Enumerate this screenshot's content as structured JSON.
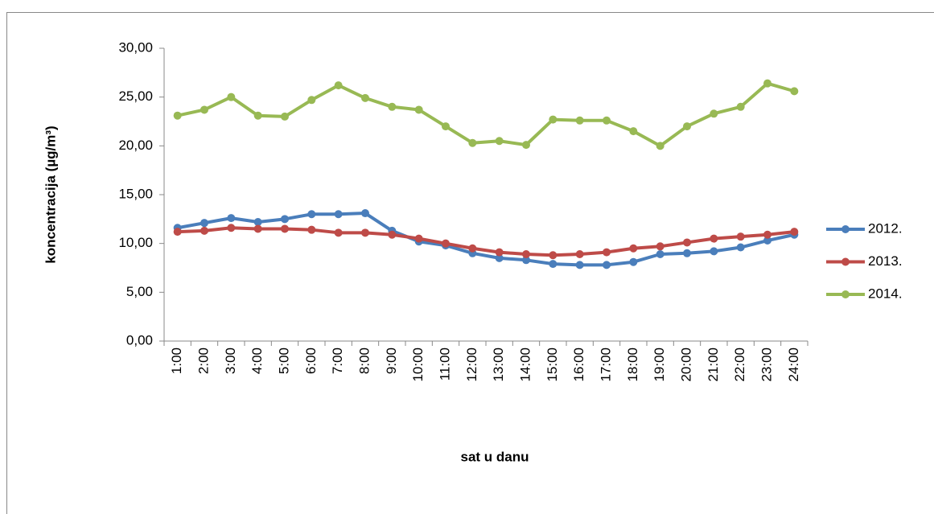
{
  "chart_data": {
    "type": "line",
    "x_label": "sat u danu",
    "y_label": "koncentracija (µg/m³)",
    "categories": [
      "1:00",
      "2:00",
      "3:00",
      "4:00",
      "5:00",
      "6:00",
      "7:00",
      "8:00",
      "9:00",
      "10:00",
      "11:00",
      "12:00",
      "13:00",
      "14:00",
      "15:00",
      "16:00",
      "17:00",
      "18:00",
      "19:00",
      "20:00",
      "21:00",
      "22:00",
      "23:00",
      "24:00"
    ],
    "series": [
      {
        "name": "2012.",
        "color": "#4a7ebb",
        "values": [
          11.6,
          12.1,
          12.6,
          12.2,
          12.5,
          13.0,
          13.0,
          13.1,
          11.3,
          10.2,
          9.8,
          9.0,
          8.5,
          8.3,
          7.9,
          7.8,
          7.8,
          8.1,
          8.9,
          9.0,
          9.2,
          9.6,
          10.3,
          10.9
        ]
      },
      {
        "name": "2013.",
        "color": "#be4b48",
        "values": [
          11.2,
          11.3,
          11.6,
          11.5,
          11.5,
          11.4,
          11.1,
          11.1,
          10.9,
          10.5,
          10.0,
          9.5,
          9.1,
          8.9,
          8.8,
          8.9,
          9.1,
          9.5,
          9.7,
          10.1,
          10.5,
          10.7,
          10.9,
          11.2
        ]
      },
      {
        "name": "2014.",
        "color": "#98b954",
        "values": [
          23.1,
          23.7,
          25.0,
          23.1,
          23.0,
          24.7,
          26.2,
          24.9,
          24.0,
          23.7,
          22.0,
          20.3,
          20.5,
          20.1,
          22.7,
          22.6,
          22.6,
          21.5,
          20.0,
          22.0,
          23.3,
          24.0,
          26.4,
          25.6
        ]
      }
    ],
    "ylim": [
      0,
      30
    ],
    "yticks": [
      {
        "value": 0,
        "label": "0,00"
      },
      {
        "value": 5,
        "label": "5,00"
      },
      {
        "value": 10,
        "label": "10,00"
      },
      {
        "value": 15,
        "label": "15,00"
      },
      {
        "value": 20,
        "label": "20,00"
      },
      {
        "value": 25,
        "label": "25,00"
      },
      {
        "value": 30,
        "label": "30,00"
      }
    ],
    "grid": false,
    "legend": "right"
  }
}
